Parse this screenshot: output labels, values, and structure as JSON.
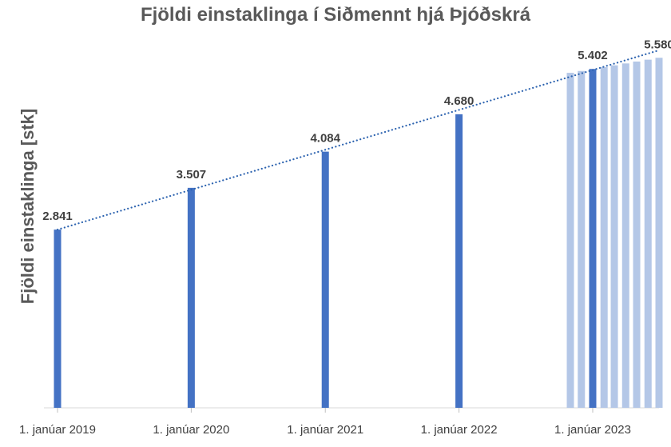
{
  "chart_data": {
    "type": "bar",
    "title": "Fjöldi einstaklinga í Siðmennt hjá Þjóðskrá",
    "xlabel": "",
    "ylabel": "Fjöldi einstaklinga [stk]",
    "ylim": [
      0,
      5800
    ],
    "grid": false,
    "legend": "none",
    "x_ticks": [
      "1. janúar 2019",
      "1. janúar 2020",
      "1. janúar 2021",
      "1. janúar 2022",
      "1. janúar 2023"
    ],
    "series": [
      {
        "color": "#4472c4",
        "points": [
          {
            "x": "2019-01-01",
            "y": 2841,
            "label": "2.841"
          },
          {
            "x": "2020-01-01",
            "y": 3507,
            "label": "3.507"
          },
          {
            "x": "2021-01-01",
            "y": 4084,
            "label": "4.084"
          },
          {
            "x": "2022-01-01",
            "y": 4680,
            "label": "4.680"
          },
          {
            "x": "2023-01-01",
            "y": 5402,
            "label": "5.402"
          }
        ]
      },
      {
        "color": "#b4c7e7",
        "points": [
          {
            "x": "2022-11-01",
            "y": 5340
          },
          {
            "x": "2022-12-01",
            "y": 5370
          },
          {
            "x": "2023-02-01",
            "y": 5430
          },
          {
            "x": "2023-03-01",
            "y": 5460
          },
          {
            "x": "2023-04-01",
            "y": 5490
          },
          {
            "x": "2023-05-01",
            "y": 5520
          },
          {
            "x": "2023-06-01",
            "y": 5550
          },
          {
            "x": "2023-07-01",
            "y": 5580,
            "label": "5.580"
          }
        ]
      }
    ],
    "trendline": {
      "style": "dotted",
      "color": "#2e64b0",
      "from": {
        "x": "2019-01-01",
        "y": 2841
      },
      "to": {
        "x": "2023-07-01",
        "y": 5700
      }
    }
  }
}
